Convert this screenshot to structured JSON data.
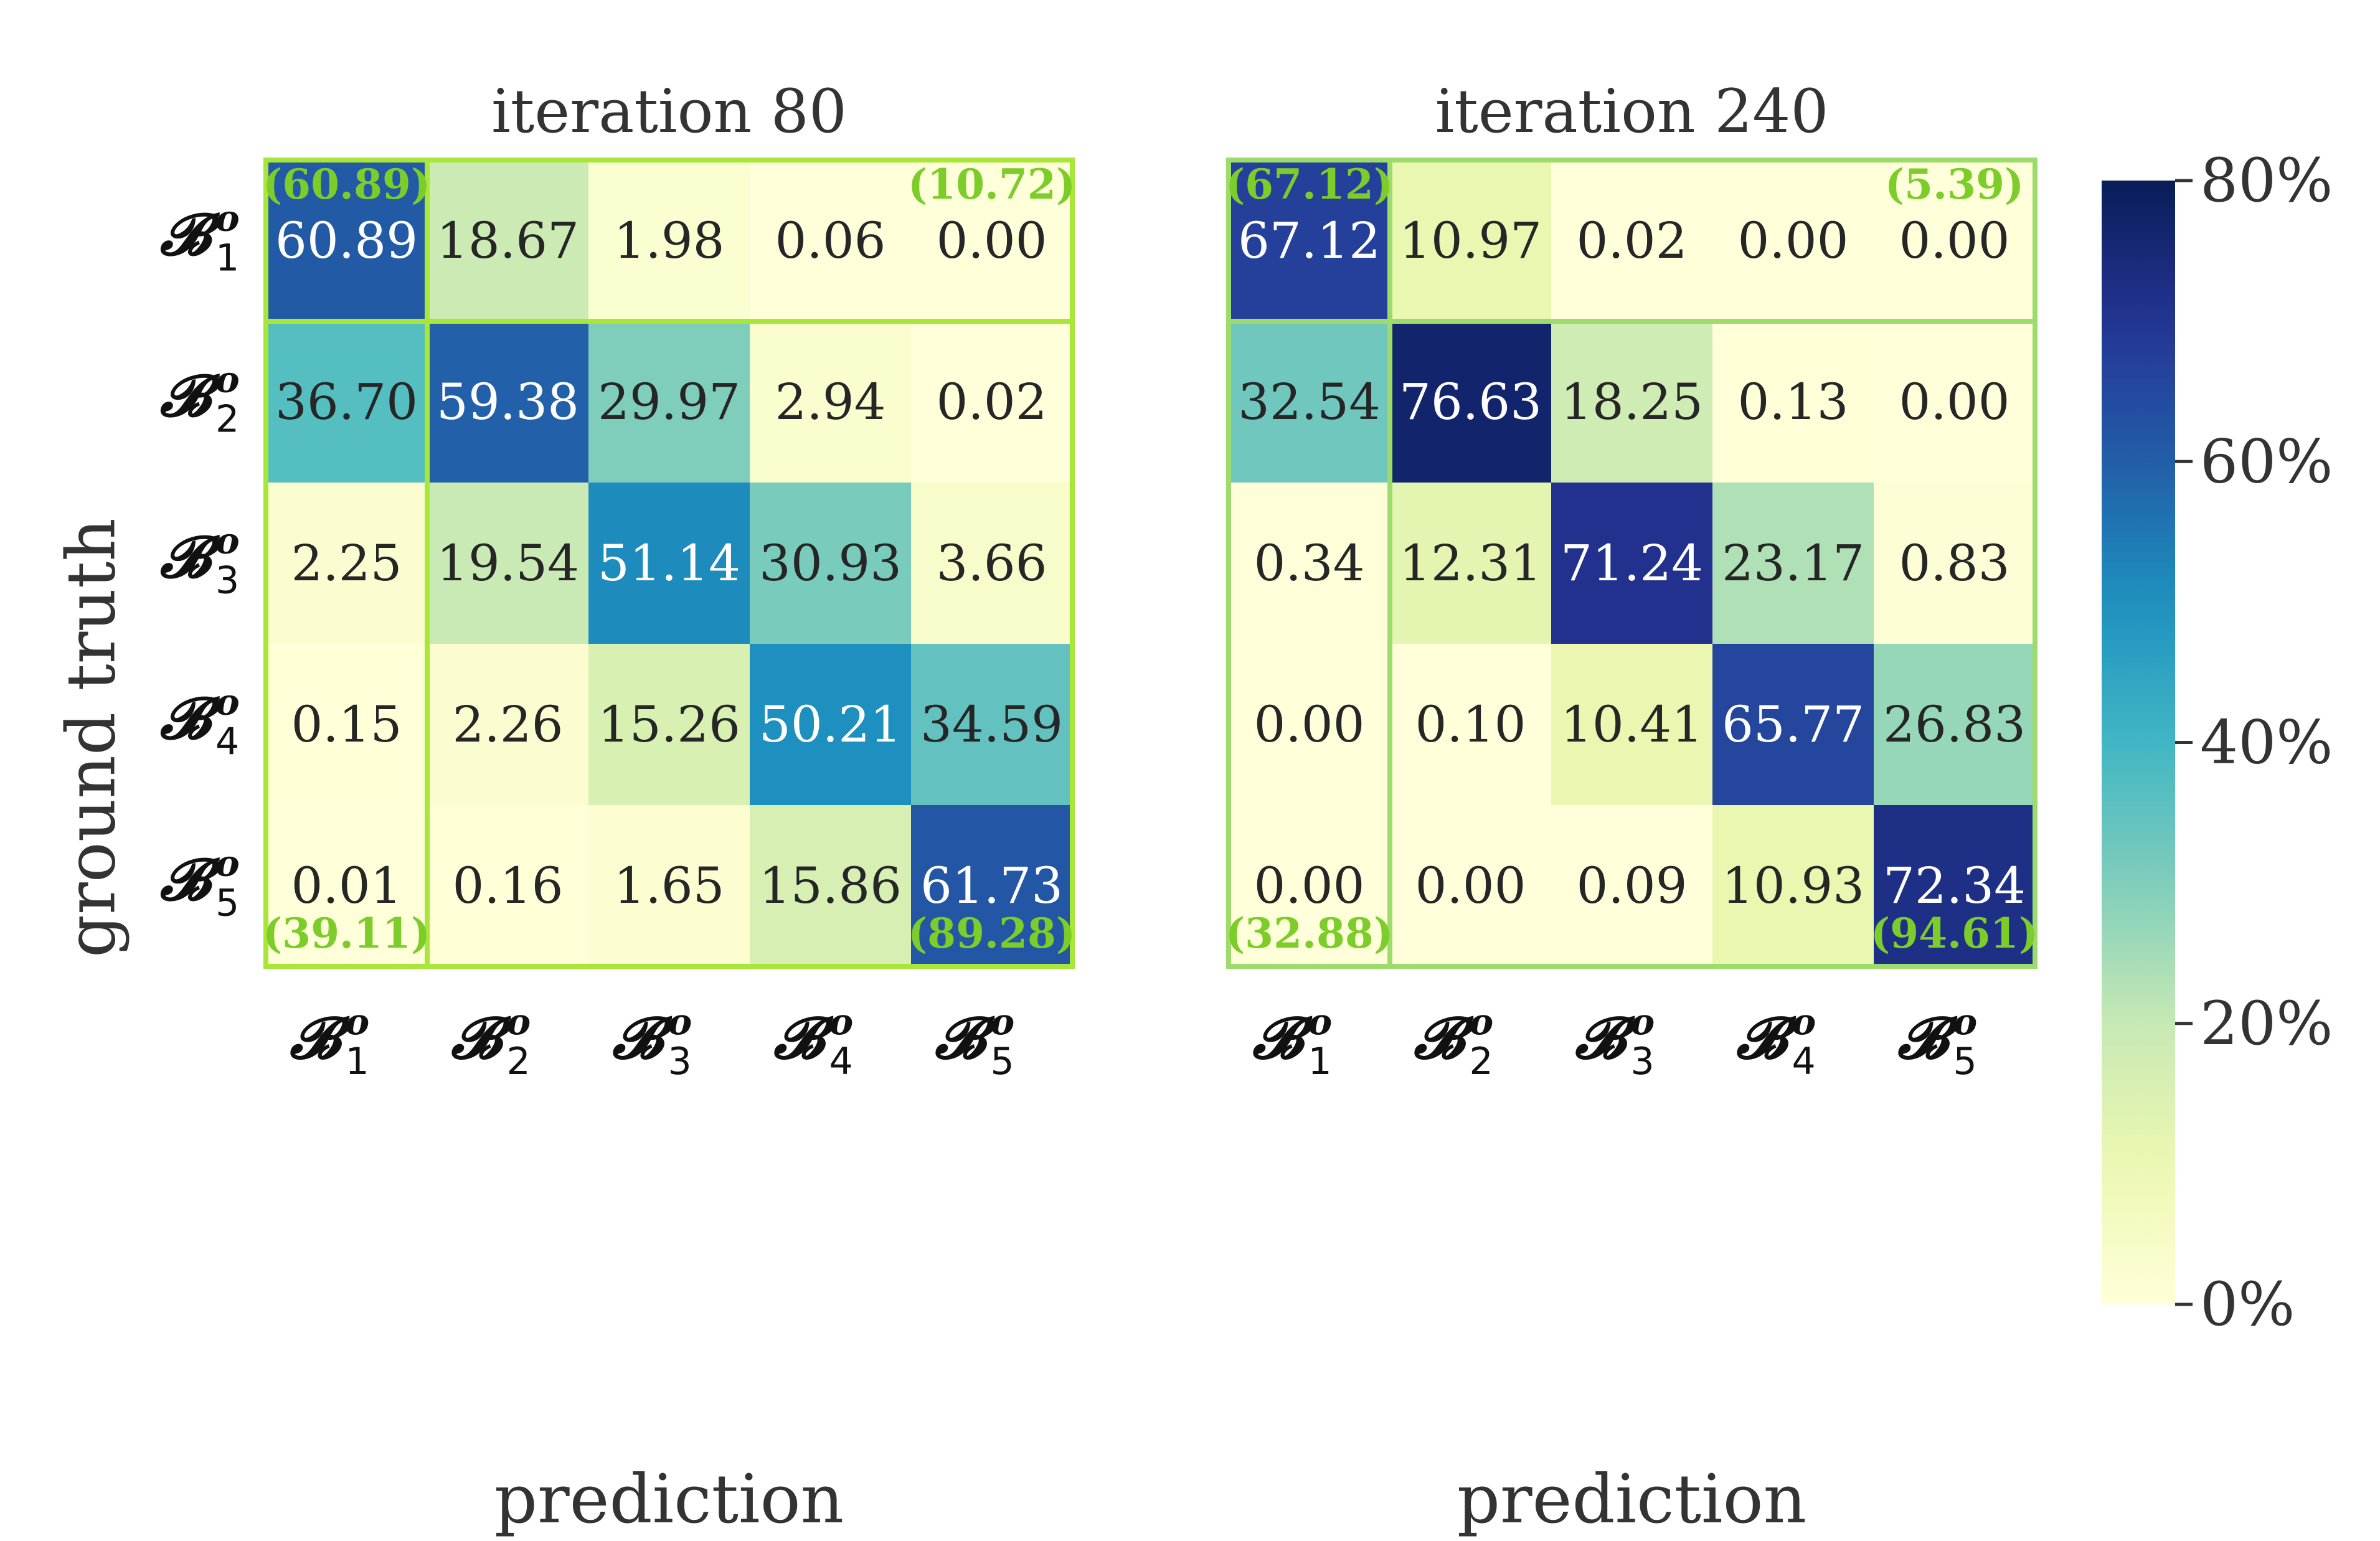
{
  "chart_data": {
    "type": "heatmap",
    "colorscale": "YlGnBu",
    "value_range": [
      0,
      80
    ],
    "y_axis_label": "ground truth",
    "x_axis_label": "prediction",
    "class_labels": [
      {
        "symbol": "𝓑",
        "sup": "o",
        "sub": "1"
      },
      {
        "symbol": "𝓑",
        "sup": "o",
        "sub": "2"
      },
      {
        "symbol": "𝓑",
        "sup": "o",
        "sub": "3"
      },
      {
        "symbol": "𝓑",
        "sup": "o",
        "sub": "4"
      },
      {
        "symbol": "𝓑",
        "sup": "o",
        "sub": "5"
      }
    ],
    "colorbar": {
      "ticks": [
        "80%",
        "60%",
        "40%",
        "20%",
        "0%"
      ],
      "tick_values": [
        80,
        60,
        40,
        20,
        0
      ]
    },
    "panels": [
      {
        "title": "iteration 80",
        "highlight_color": "#a8e63a",
        "values": [
          [
            "60.89",
            "18.67",
            "1.98",
            "0.06",
            "0.00"
          ],
          [
            "36.70",
            "59.38",
            "29.97",
            "2.94",
            "0.02"
          ],
          [
            "2.25",
            "19.54",
            "51.14",
            "30.93",
            "3.66"
          ],
          [
            "0.15",
            "2.26",
            "15.26",
            "50.21",
            "34.59"
          ],
          [
            "0.01",
            "0.16",
            "1.65",
            "15.86",
            "61.73"
          ]
        ],
        "annotations": {
          "top_left": "(60.89)",
          "top_right": "(10.72)",
          "bottom_left": "(39.11)",
          "bottom_right": "(89.28)"
        }
      },
      {
        "title": "iteration 240",
        "highlight_color": "#9ddc6c",
        "values": [
          [
            "67.12",
            "10.97",
            "0.02",
            "0.00",
            "0.00"
          ],
          [
            "32.54",
            "76.63",
            "18.25",
            "0.13",
            "0.00"
          ],
          [
            "0.34",
            "12.31",
            "71.24",
            "23.17",
            "0.83"
          ],
          [
            "0.00",
            "0.10",
            "10.41",
            "65.77",
            "26.83"
          ],
          [
            "0.00",
            "0.00",
            "0.09",
            "10.93",
            "72.34"
          ]
        ],
        "annotations": {
          "top_left": "(67.12)",
          "top_right": "(5.39)",
          "bottom_left": "(32.88)",
          "bottom_right": "(94.61)"
        }
      }
    ]
  }
}
